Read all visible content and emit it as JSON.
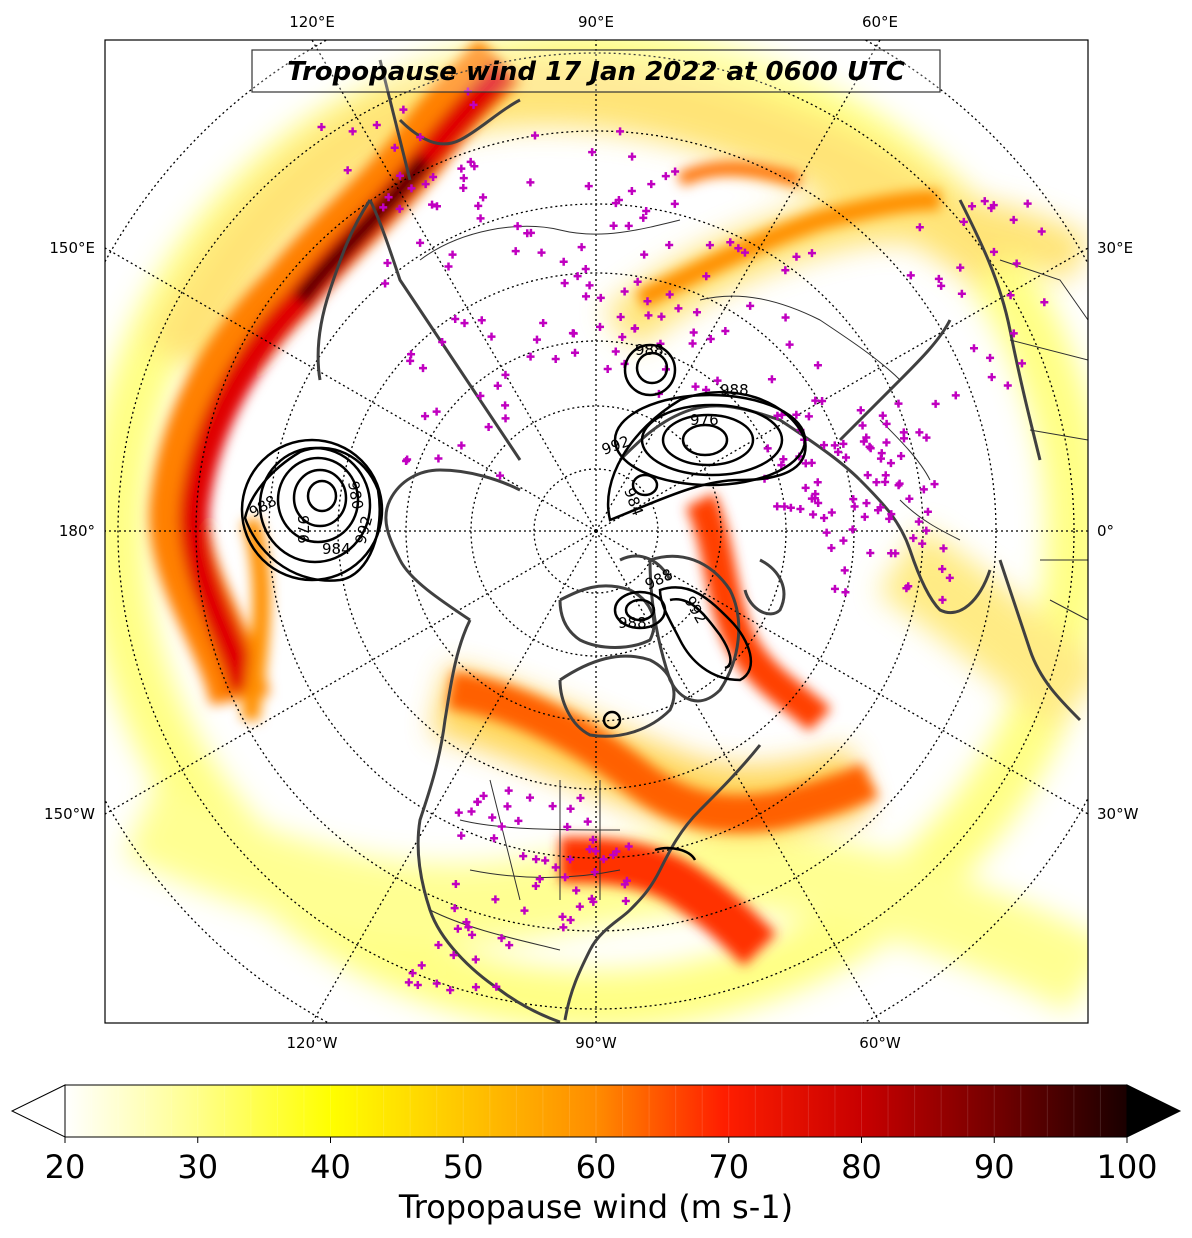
{
  "title": "Tropopause wind 17 Jan 2022 at 0600 UTC",
  "map": {
    "projection": "north-polar-stereographic",
    "grid": "dotted",
    "top_labels": [
      "120°E",
      "90°E",
      "60°E"
    ],
    "bottom_labels": [
      "120°W",
      "90°W",
      "60°W"
    ],
    "left_labels": [
      "150°E",
      "180°",
      "150°W"
    ],
    "right_labels": [
      "30°E",
      "0°",
      "30°W"
    ],
    "station_marker_color": "#c000c0",
    "coastline_color": "#404040"
  },
  "pressure_lows": [
    {
      "labels": [
        "988",
        "976",
        "980",
        "984",
        "992"
      ]
    },
    {
      "labels": [
        "988",
        "976",
        "992",
        "984",
        "988"
      ]
    },
    {
      "labels": [
        "988",
        "988",
        "992"
      ]
    }
  ],
  "colorbar": {
    "label": "Tropopause wind (m s-1)",
    "min": 20,
    "max": 100,
    "ticks": [
      "20",
      "30",
      "40",
      "50",
      "60",
      "70",
      "80",
      "90",
      "100"
    ],
    "extend": "both",
    "colors": [
      "#ffffff",
      "#ffff80",
      "#ffff00",
      "#ffc000",
      "#ff8000",
      "#ff0000",
      "#c00000",
      "#800000",
      "#000000"
    ]
  }
}
